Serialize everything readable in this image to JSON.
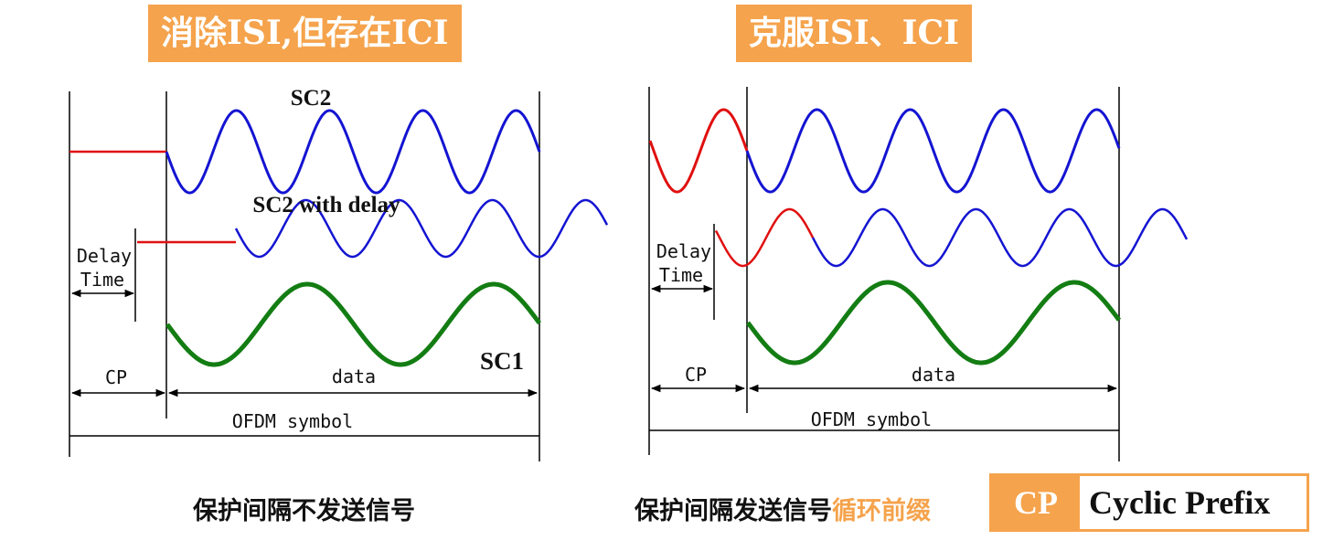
{
  "left_panel": {
    "title": "消除ISI,但存在ICI",
    "labels": {
      "sc2": "SC2",
      "sc2_delay": "SC2 with delay",
      "sc1": "SC1",
      "delay": "Delay",
      "time": "Time",
      "cp": "CP",
      "data": "data",
      "ofdm_symbol": "OFDM symbol"
    },
    "caption": "保护间隔不发送信号"
  },
  "right_panel": {
    "title": "克服ISI、ICI",
    "labels": {
      "delay": "Delay",
      "time": "Time",
      "cp": "CP",
      "data": "data",
      "ofdm_symbol": "OFDM symbol"
    },
    "caption_main": "保护间隔发送信号",
    "caption_highlight": "循环前缀"
  },
  "legend": {
    "abbr": "CP",
    "full": "Cyclic Prefix"
  },
  "colors": {
    "accent": "#f5a34c",
    "sc2_wave": "#1414d2",
    "sc1_wave": "#137d13",
    "guard_signal": "#e01010",
    "lines": "#000000"
  }
}
